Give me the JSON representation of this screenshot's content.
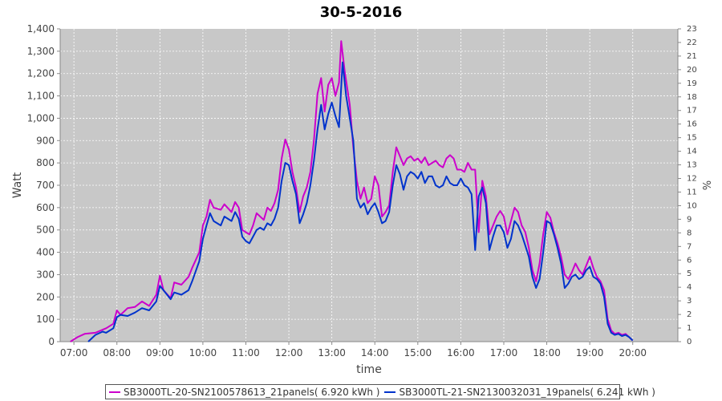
{
  "chart_data": {
    "type": "line",
    "title": "30-5-2016",
    "xlabel": "time",
    "ylabel": "Watt",
    "y2label": "%",
    "ylim": [
      0,
      1400
    ],
    "y2lim": [
      0,
      23
    ],
    "xlim_hours": [
      6.68,
      21.05
    ],
    "yticks": [
      "0",
      "100",
      "200",
      "300",
      "400",
      "500",
      "600",
      "700",
      "800",
      "900",
      "1,000",
      "1,100",
      "1,200",
      "1,300",
      "1,400"
    ],
    "y2ticks": [
      "0",
      "1",
      "2",
      "3",
      "4",
      "5",
      "6",
      "7",
      "8",
      "9",
      "10",
      "11",
      "12",
      "13",
      "14",
      "15",
      "16",
      "17",
      "18",
      "19",
      "20",
      "21",
      "22",
      "23"
    ],
    "xticks": [
      "07:00",
      "08:00",
      "09:00",
      "10:00",
      "11:00",
      "12:00",
      "13:00",
      "14:00",
      "15:00",
      "16:00",
      "17:00",
      "18:00",
      "19:00",
      "20:00"
    ],
    "grid": true,
    "legend_position": "bottom",
    "series": [
      {
        "name": "SB3000TL-20-SN2100578613_21panels( 6.920 kWh )",
        "color": "#cc00cc",
        "points": [
          [
            "06:55",
            0
          ],
          [
            "07:05",
            20
          ],
          [
            "07:15",
            35
          ],
          [
            "07:30",
            40
          ],
          [
            "07:45",
            60
          ],
          [
            "07:55",
            80
          ],
          [
            "08:00",
            140
          ],
          [
            "08:05",
            120
          ],
          [
            "08:15",
            150
          ],
          [
            "08:25",
            155
          ],
          [
            "08:35",
            180
          ],
          [
            "08:45",
            160
          ],
          [
            "08:55",
            210
          ],
          [
            "09:00",
            295
          ],
          [
            "09:05",
            230
          ],
          [
            "09:15",
            195
          ],
          [
            "09:20",
            265
          ],
          [
            "09:30",
            255
          ],
          [
            "09:40",
            290
          ],
          [
            "09:45",
            330
          ],
          [
            "09:55",
            400
          ],
          [
            "10:00",
            520
          ],
          [
            "10:05",
            560
          ],
          [
            "10:10",
            635
          ],
          [
            "10:15",
            600
          ],
          [
            "10:25",
            590
          ],
          [
            "10:30",
            615
          ],
          [
            "10:40",
            580
          ],
          [
            "10:45",
            625
          ],
          [
            "10:50",
            600
          ],
          [
            "10:55",
            500
          ],
          [
            "11:00",
            490
          ],
          [
            "11:05",
            480
          ],
          [
            "11:10",
            520
          ],
          [
            "11:15",
            575
          ],
          [
            "11:20",
            560
          ],
          [
            "11:25",
            545
          ],
          [
            "11:30",
            600
          ],
          [
            "11:35",
            585
          ],
          [
            "11:40",
            620
          ],
          [
            "11:45",
            680
          ],
          [
            "11:50",
            820
          ],
          [
            "11:55",
            905
          ],
          [
            "12:00",
            860
          ],
          [
            "12:05",
            760
          ],
          [
            "12:10",
            690
          ],
          [
            "12:15",
            580
          ],
          [
            "12:20",
            650
          ],
          [
            "12:25",
            690
          ],
          [
            "12:30",
            760
          ],
          [
            "12:35",
            900
          ],
          [
            "12:40",
            1110
          ],
          [
            "12:45",
            1180
          ],
          [
            "12:50",
            1030
          ],
          [
            "12:55",
            1150
          ],
          [
            "13:00",
            1180
          ],
          [
            "13:05",
            1100
          ],
          [
            "13:10",
            1160
          ],
          [
            "13:13",
            1345
          ],
          [
            "13:18",
            1210
          ],
          [
            "13:25",
            1060
          ],
          [
            "13:30",
            870
          ],
          [
            "13:35",
            720
          ],
          [
            "13:40",
            640
          ],
          [
            "13:45",
            690
          ],
          [
            "13:50",
            620
          ],
          [
            "13:55",
            640
          ],
          [
            "14:00",
            740
          ],
          [
            "14:05",
            700
          ],
          [
            "14:10",
            560
          ],
          [
            "14:15",
            580
          ],
          [
            "14:20",
            610
          ],
          [
            "14:25",
            760
          ],
          [
            "14:30",
            870
          ],
          [
            "14:35",
            830
          ],
          [
            "14:40",
            790
          ],
          [
            "14:45",
            820
          ],
          [
            "14:50",
            830
          ],
          [
            "14:55",
            810
          ],
          [
            "15:00",
            820
          ],
          [
            "15:05",
            800
          ],
          [
            "15:10",
            825
          ],
          [
            "15:15",
            790
          ],
          [
            "15:20",
            800
          ],
          [
            "15:25",
            810
          ],
          [
            "15:30",
            790
          ],
          [
            "15:35",
            780
          ],
          [
            "15:40",
            820
          ],
          [
            "15:45",
            835
          ],
          [
            "15:50",
            820
          ],
          [
            "15:55",
            770
          ],
          [
            "16:00",
            770
          ],
          [
            "16:05",
            760
          ],
          [
            "16:10",
            800
          ],
          [
            "16:15",
            770
          ],
          [
            "16:20",
            770
          ],
          [
            "16:25",
            490
          ],
          [
            "16:30",
            720
          ],
          [
            "16:35",
            650
          ],
          [
            "16:40",
            480
          ],
          [
            "16:45",
            520
          ],
          [
            "16:50",
            560
          ],
          [
            "16:55",
            585
          ],
          [
            "17:00",
            560
          ],
          [
            "17:05",
            480
          ],
          [
            "17:10",
            540
          ],
          [
            "17:15",
            600
          ],
          [
            "17:20",
            580
          ],
          [
            "17:25",
            520
          ],
          [
            "17:30",
            490
          ],
          [
            "17:35",
            420
          ],
          [
            "17:40",
            320
          ],
          [
            "17:45",
            270
          ],
          [
            "17:50",
            350
          ],
          [
            "17:55",
            480
          ],
          [
            "18:00",
            580
          ],
          [
            "18:05",
            555
          ],
          [
            "18:10",
            490
          ],
          [
            "18:15",
            440
          ],
          [
            "18:20",
            380
          ],
          [
            "18:25",
            300
          ],
          [
            "18:30",
            280
          ],
          [
            "18:35",
            310
          ],
          [
            "18:40",
            350
          ],
          [
            "18:45",
            320
          ],
          [
            "18:50",
            300
          ],
          [
            "18:55",
            340
          ],
          [
            "19:00",
            380
          ],
          [
            "19:05",
            330
          ],
          [
            "19:10",
            290
          ],
          [
            "19:15",
            270
          ],
          [
            "19:20",
            230
          ],
          [
            "19:25",
            100
          ],
          [
            "19:30",
            50
          ],
          [
            "19:35",
            35
          ],
          [
            "19:40",
            40
          ],
          [
            "19:45",
            30
          ],
          [
            "19:50",
            35
          ],
          [
            "19:55",
            20
          ],
          [
            "20:00",
            5
          ]
        ]
      },
      {
        "name": "SB3000TL-21-SN2130032031_19panels( 6.241 kWh )",
        "color": "#0033cc",
        "points": [
          [
            "07:20",
            0
          ],
          [
            "07:30",
            30
          ],
          [
            "07:40",
            45
          ],
          [
            "07:45",
            40
          ],
          [
            "07:55",
            60
          ],
          [
            "08:00",
            110
          ],
          [
            "08:05",
            120
          ],
          [
            "08:15",
            115
          ],
          [
            "08:25",
            130
          ],
          [
            "08:35",
            150
          ],
          [
            "08:45",
            140
          ],
          [
            "08:55",
            180
          ],
          [
            "09:00",
            250
          ],
          [
            "09:05",
            230
          ],
          [
            "09:15",
            190
          ],
          [
            "09:20",
            220
          ],
          [
            "09:30",
            210
          ],
          [
            "09:40",
            230
          ],
          [
            "09:45",
            270
          ],
          [
            "09:55",
            360
          ],
          [
            "10:00",
            460
          ],
          [
            "10:05",
            520
          ],
          [
            "10:10",
            575
          ],
          [
            "10:15",
            540
          ],
          [
            "10:25",
            520
          ],
          [
            "10:30",
            560
          ],
          [
            "10:40",
            540
          ],
          [
            "10:45",
            580
          ],
          [
            "10:50",
            550
          ],
          [
            "10:55",
            470
          ],
          [
            "11:00",
            450
          ],
          [
            "11:05",
            440
          ],
          [
            "11:10",
            470
          ],
          [
            "11:15",
            500
          ],
          [
            "11:20",
            510
          ],
          [
            "11:25",
            500
          ],
          [
            "11:30",
            530
          ],
          [
            "11:35",
            520
          ],
          [
            "11:40",
            550
          ],
          [
            "11:45",
            600
          ],
          [
            "11:50",
            720
          ],
          [
            "11:55",
            800
          ],
          [
            "12:00",
            790
          ],
          [
            "12:05",
            720
          ],
          [
            "12:10",
            660
          ],
          [
            "12:15",
            530
          ],
          [
            "12:20",
            570
          ],
          [
            "12:25",
            620
          ],
          [
            "12:30",
            700
          ],
          [
            "12:35",
            810
          ],
          [
            "12:40",
            950
          ],
          [
            "12:45",
            1060
          ],
          [
            "12:50",
            950
          ],
          [
            "12:55",
            1020
          ],
          [
            "13:00",
            1070
          ],
          [
            "13:05",
            1010
          ],
          [
            "13:10",
            960
          ],
          [
            "13:15",
            1250
          ],
          [
            "13:20",
            1100
          ],
          [
            "13:25",
            1000
          ],
          [
            "13:30",
            900
          ],
          [
            "13:35",
            640
          ],
          [
            "13:40",
            600
          ],
          [
            "13:45",
            620
          ],
          [
            "13:50",
            570
          ],
          [
            "13:55",
            600
          ],
          [
            "14:00",
            620
          ],
          [
            "14:05",
            580
          ],
          [
            "14:10",
            530
          ],
          [
            "14:15",
            540
          ],
          [
            "14:20",
            580
          ],
          [
            "14:25",
            700
          ],
          [
            "14:30",
            790
          ],
          [
            "14:35",
            750
          ],
          [
            "14:40",
            680
          ],
          [
            "14:45",
            740
          ],
          [
            "14:50",
            760
          ],
          [
            "14:55",
            750
          ],
          [
            "15:00",
            730
          ],
          [
            "15:05",
            760
          ],
          [
            "15:10",
            710
          ],
          [
            "15:15",
            740
          ],
          [
            "15:20",
            740
          ],
          [
            "15:25",
            700
          ],
          [
            "15:30",
            690
          ],
          [
            "15:35",
            700
          ],
          [
            "15:40",
            740
          ],
          [
            "15:45",
            710
          ],
          [
            "15:50",
            700
          ],
          [
            "15:55",
            700
          ],
          [
            "16:00",
            730
          ],
          [
            "16:05",
            700
          ],
          [
            "16:10",
            690
          ],
          [
            "16:15",
            660
          ],
          [
            "16:20",
            410
          ],
          [
            "16:25",
            650
          ],
          [
            "16:30",
            690
          ],
          [
            "16:35",
            620
          ],
          [
            "16:40",
            410
          ],
          [
            "16:45",
            470
          ],
          [
            "16:50",
            520
          ],
          [
            "16:55",
            520
          ],
          [
            "17:00",
            490
          ],
          [
            "17:05",
            420
          ],
          [
            "17:10",
            460
          ],
          [
            "17:15",
            540
          ],
          [
            "17:20",
            520
          ],
          [
            "17:25",
            480
          ],
          [
            "17:30",
            430
          ],
          [
            "17:35",
            380
          ],
          [
            "17:40",
            290
          ],
          [
            "17:45",
            240
          ],
          [
            "17:50",
            280
          ],
          [
            "17:55",
            400
          ],
          [
            "18:00",
            540
          ],
          [
            "18:05",
            530
          ],
          [
            "18:10",
            480
          ],
          [
            "18:15",
            420
          ],
          [
            "18:20",
            350
          ],
          [
            "18:25",
            240
          ],
          [
            "18:30",
            260
          ],
          [
            "18:35",
            290
          ],
          [
            "18:40",
            300
          ],
          [
            "18:45",
            280
          ],
          [
            "18:50",
            290
          ],
          [
            "18:55",
            320
          ],
          [
            "19:00",
            335
          ],
          [
            "19:05",
            290
          ],
          [
            "19:10",
            280
          ],
          [
            "19:15",
            260
          ],
          [
            "19:20",
            200
          ],
          [
            "19:25",
            80
          ],
          [
            "19:30",
            40
          ],
          [
            "19:35",
            30
          ],
          [
            "19:40",
            35
          ],
          [
            "19:45",
            25
          ],
          [
            "19:50",
            30
          ],
          [
            "19:55",
            20
          ],
          [
            "20:00",
            5
          ]
        ]
      }
    ]
  }
}
